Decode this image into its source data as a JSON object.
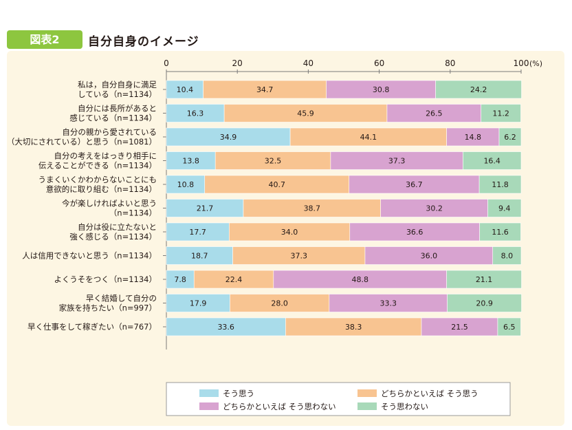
{
  "figure": {
    "badge": "図表2",
    "title": "自分自身のイメージ"
  },
  "colors": {
    "panel_bg": "#fdf6e3",
    "series": [
      "#a9dcea",
      "#f8c491",
      "#d8a3d0",
      "#a8d9b9"
    ],
    "text": "#231815",
    "axis": "#7a7a7a"
  },
  "chart_data": {
    "type": "bar",
    "orientation": "horizontal",
    "stacked": true,
    "xlim": [
      0,
      100
    ],
    "xticks": [
      "0",
      "20",
      "40",
      "60",
      "80",
      "100"
    ],
    "x_unit": "(%)",
    "grid": false,
    "legend_position": "bottom",
    "categories": [
      [
        "私は，自分自身に満足",
        "している（n=1134）"
      ],
      [
        "自分には長所があると",
        "感じている（n=1134）"
      ],
      [
        "自分の親から愛されている",
        "（大切にされている）と思う（n=1081）"
      ],
      [
        "自分の考えをはっきり相手に",
        "伝えることができる（n=1134）"
      ],
      [
        "うまくいくかわからないことにも",
        "意欲的に取り組む（n=1134）"
      ],
      [
        "今が楽しければよいと思う",
        "（n=1134）"
      ],
      [
        "自分は役に立たないと",
        "強く感じる（n=1134）"
      ],
      [
        "人は信用できないと思う（n=1134）"
      ],
      [
        "よくうそをつく（n=1134）"
      ],
      [
        "早く結婚して自分の",
        "家族を持ちたい（n=997）"
      ],
      [
        "早く仕事をして稼ぎたい（n=767）"
      ]
    ],
    "series": [
      {
        "name": "そう思う",
        "values": [
          10.4,
          16.3,
          34.9,
          13.8,
          10.8,
          21.7,
          17.7,
          18.7,
          7.8,
          17.9,
          33.6
        ],
        "labels": [
          "10.4",
          "16.3",
          "34.9",
          "13.8",
          "10.8",
          "21.7",
          "17.7",
          "18.7",
          "7.8",
          "17.9",
          "33.6"
        ]
      },
      {
        "name": "どちらかといえば そう思う",
        "values": [
          34.7,
          45.9,
          44.1,
          32.5,
          40.7,
          38.7,
          34.0,
          37.3,
          22.4,
          28.0,
          38.3
        ],
        "labels": [
          "34.7",
          "45.9",
          "44.1",
          "32.5",
          "40.7",
          "38.7",
          "34.0",
          "37.3",
          "22.4",
          "28.0",
          "38.3"
        ]
      },
      {
        "name": "どちらかといえば そう思わない",
        "values": [
          30.8,
          26.5,
          14.8,
          37.3,
          36.7,
          30.2,
          36.6,
          36.0,
          48.8,
          33.3,
          21.5
        ],
        "labels": [
          "30.8",
          "26.5",
          "14.8",
          "37.3",
          "36.7",
          "30.2",
          "36.6",
          "36.0",
          "48.8",
          "33.3",
          "21.5"
        ]
      },
      {
        "name": "そう思わない",
        "values": [
          24.2,
          11.2,
          6.2,
          16.4,
          11.8,
          9.4,
          11.6,
          8.0,
          21.1,
          20.9,
          6.5
        ],
        "labels": [
          "24.2",
          "11.2",
          "6.2",
          "16.4",
          "11.8",
          "9.4",
          "11.6",
          "8.0",
          "21.1",
          "20.9",
          "6.5"
        ]
      }
    ]
  }
}
